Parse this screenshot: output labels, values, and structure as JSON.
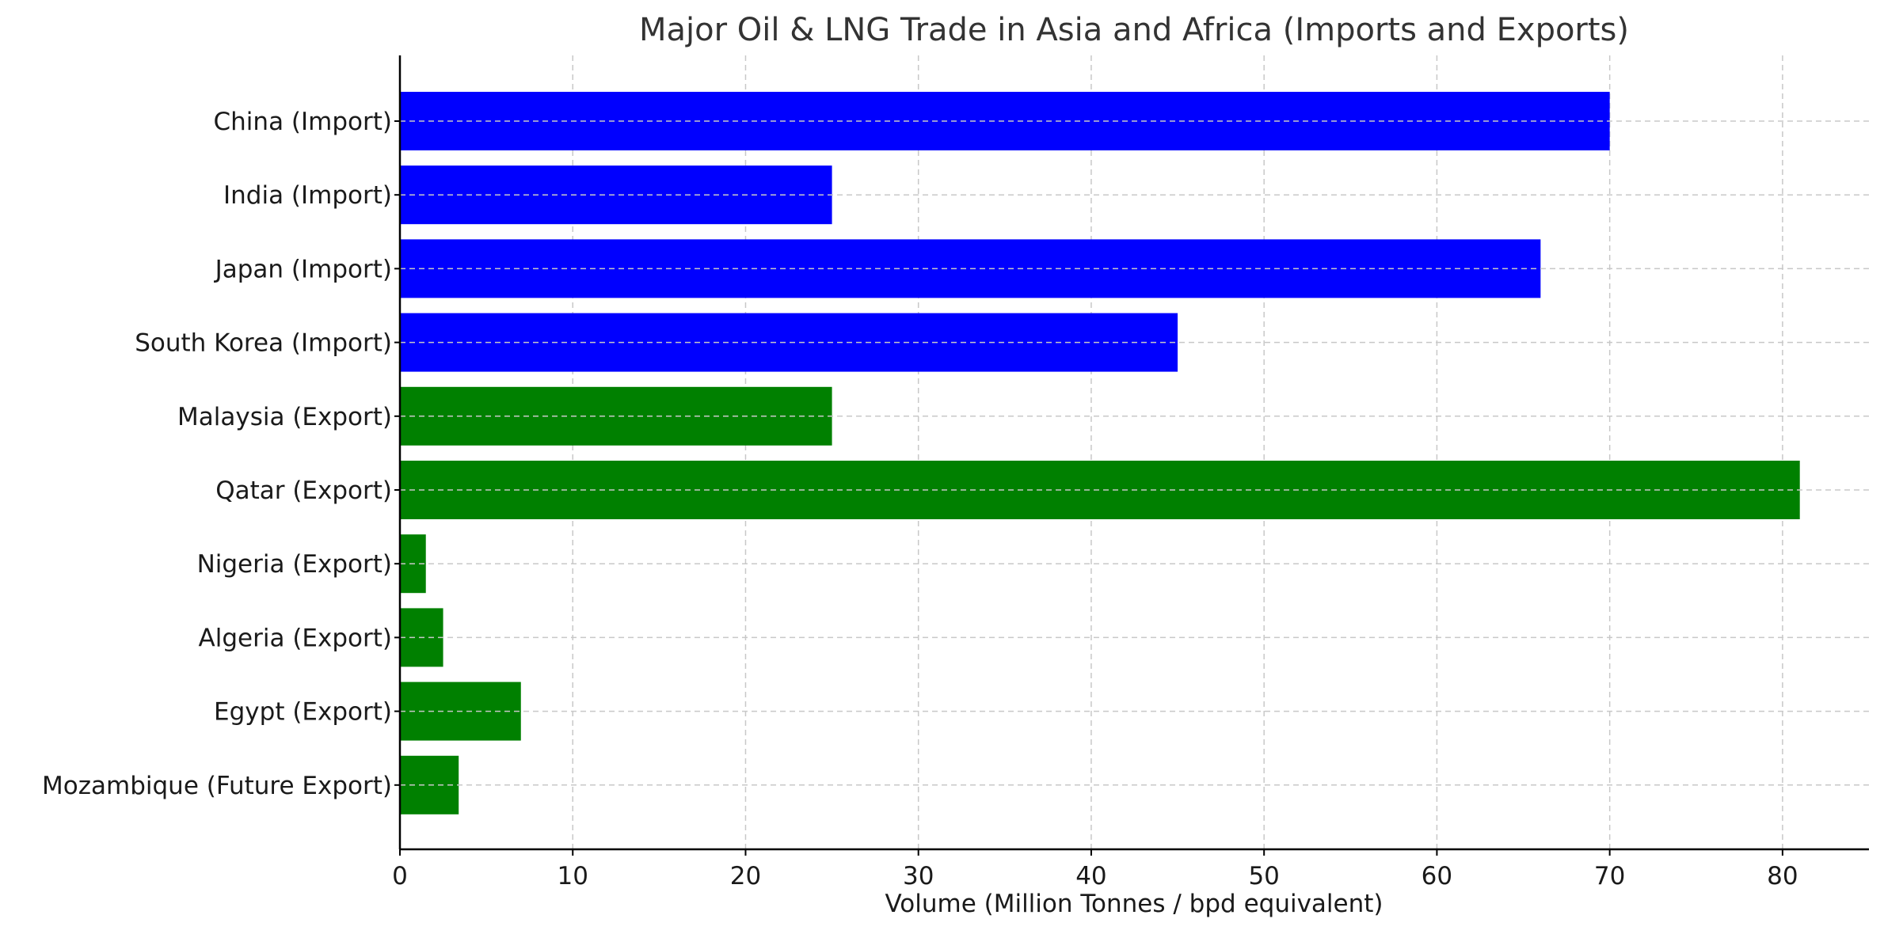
{
  "chart_data": {
    "type": "bar",
    "orientation": "horizontal",
    "title": "Major Oil & LNG Trade in Asia and Africa (Imports and Exports)",
    "xlabel": "Volume (Million Tonnes / bpd equivalent)",
    "ylabel": "",
    "xlim": [
      0,
      85
    ],
    "xticks": [
      0,
      10,
      20,
      30,
      40,
      50,
      60,
      70,
      80
    ],
    "grid": true,
    "categories": [
      "China (Import)",
      "India (Import)",
      "Japan (Import)",
      "South Korea (Import)",
      "Malaysia (Export)",
      "Qatar (Export)",
      "Nigeria (Export)",
      "Algeria (Export)",
      "Egypt (Export)",
      "Mozambique (Future Export)"
    ],
    "values": [
      70,
      25,
      66,
      45,
      25,
      81,
      1.5,
      2.5,
      7,
      3.4
    ],
    "bar_colors": [
      "#0000ff",
      "#0000ff",
      "#0000ff",
      "#0000ff",
      "#008000",
      "#008000",
      "#008000",
      "#008000",
      "#008000",
      "#008000"
    ]
  }
}
